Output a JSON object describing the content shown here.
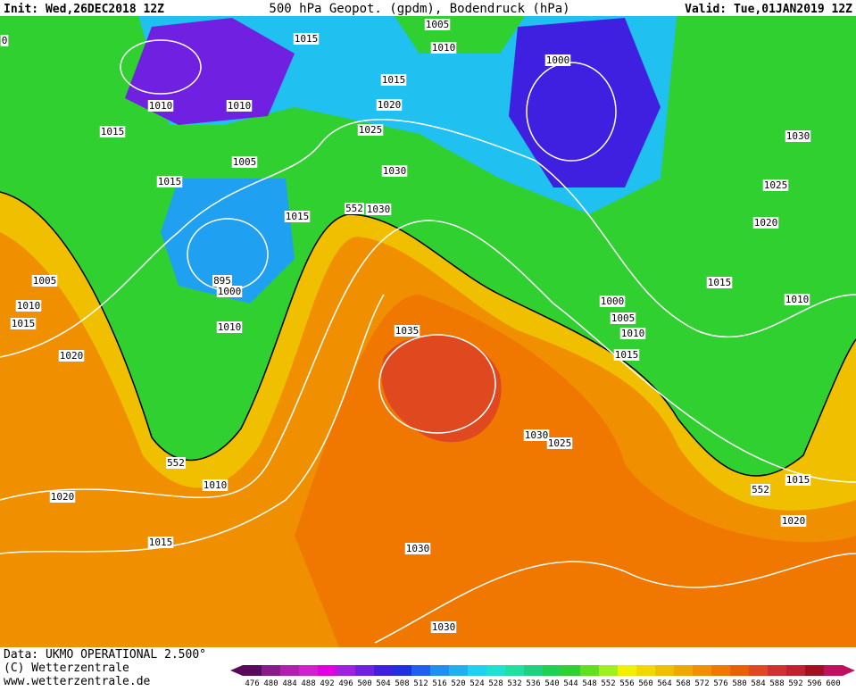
{
  "header": {
    "init": "Init: Wed,26DEC2018 12Z",
    "title": "500 hPa Geopot. (gpdm), Bodendruck (hPa)",
    "valid": "Valid: Tue,01JAN2019 12Z"
  },
  "isobar_labels": [
    "0",
    "1015",
    "1005",
    "1010",
    "1000",
    "1015",
    "1010",
    "1010",
    "1015",
    "1020",
    "1025",
    "1030",
    "1005",
    "1015",
    "1030",
    "1025",
    "1015",
    "552",
    "1030",
    "1020",
    "1005",
    "895",
    "1000",
    "1015",
    "1010",
    "1015",
    "1000",
    "1010",
    "1005",
    "1010",
    "1010",
    "1035",
    "1020",
    "1015",
    "1030",
    "1025",
    "552",
    "1010",
    "552",
    "1015",
    "1020",
    "1020",
    "1015",
    "1030",
    "1030"
  ],
  "footer": {
    "data": "Data: UKMO OPERATIONAL 2.500°",
    "copyright": "(C) Wetterzentrale",
    "url": "www.wetterzentrale.de"
  },
  "colorbar": {
    "levels": [
      476,
      480,
      484,
      488,
      492,
      496,
      500,
      504,
      508,
      512,
      516,
      520,
      524,
      528,
      532,
      536,
      540,
      544,
      548,
      552,
      556,
      560,
      564,
      568,
      572,
      576,
      580,
      584,
      588,
      592,
      596,
      600
    ],
    "colors": [
      "#5a0a5a",
      "#8a1a8a",
      "#b020b0",
      "#d020d0",
      "#e000e0",
      "#a020e0",
      "#7020e0",
      "#4020e0",
      "#2030e0",
      "#2060f0",
      "#2090f0",
      "#20b0f0",
      "#20d0f0",
      "#20e0d0",
      "#20e0a0",
      "#20d080",
      "#20d050",
      "#30d030",
      "#60e020",
      "#a0f020",
      "#f0f000",
      "#f0d800",
      "#f0c000",
      "#f0a800",
      "#f09000",
      "#f07800",
      "#e86000",
      "#e04820",
      "#d03030",
      "#c02030",
      "#a01020",
      "#c01060"
    ]
  }
}
